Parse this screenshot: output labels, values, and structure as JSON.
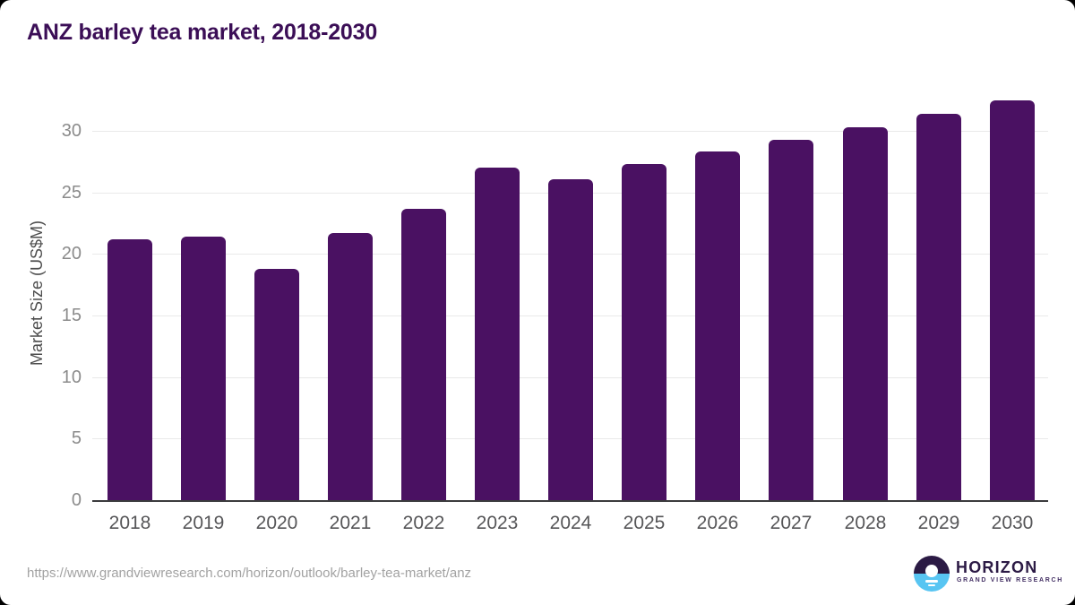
{
  "title": "ANZ barley tea market, 2018-2030",
  "chart_data": {
    "type": "bar",
    "title": "ANZ barley tea market, 2018-2030",
    "categories": [
      "2018",
      "2019",
      "2020",
      "2021",
      "2022",
      "2023",
      "2024",
      "2025",
      "2026",
      "2027",
      "2028",
      "2029",
      "2030"
    ],
    "values": [
      21.2,
      21.4,
      18.8,
      21.7,
      23.7,
      27.0,
      26.1,
      27.3,
      28.3,
      29.3,
      30.3,
      31.4,
      32.5
    ],
    "xlabel": "",
    "ylabel": "Market Size (US$M)",
    "yticks": [
      0,
      5,
      10,
      15,
      20,
      25,
      30
    ],
    "ylim": [
      0,
      33.4
    ],
    "grid": true,
    "legend": false,
    "bar_color": "#4a1162"
  },
  "colors": {
    "title": "#3b0e56",
    "bar": "#4a1162",
    "gridline": "#e9e9e9",
    "axis_line": "#3b3b3d",
    "y_tick_label": "#8b8b8b",
    "x_tick_label": "#565658",
    "url_text": "#a2a2a2",
    "logo_purple": "#2b1a44",
    "logo_blue": "#58c5f2"
  },
  "footer": {
    "source_url": "https://www.grandviewresearch.com/horizon/outlook/barley-tea-market/anz",
    "logo": {
      "name": "HORIZON",
      "subtitle": "GRAND VIEW RESEARCH"
    }
  }
}
